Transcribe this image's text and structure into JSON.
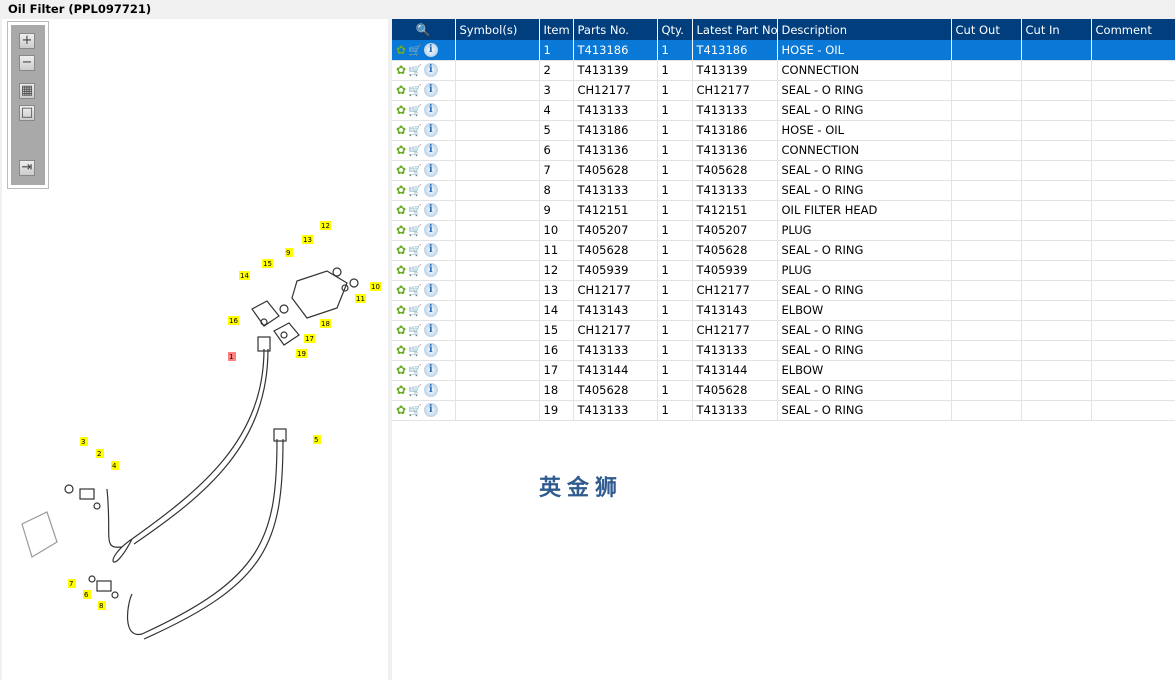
{
  "title": "Oil Filter (PPL097721)",
  "toolbar": {
    "zoom_in": "+",
    "zoom_out": "−",
    "fit": "▦",
    "actual": "□",
    "export": "⇥"
  },
  "columns": [
    "",
    "Symbol(s)",
    "Item",
    "Parts No.",
    "Qty.",
    "Latest Part No.",
    "Description",
    "Cut Out",
    "Cut In",
    "Comment"
  ],
  "rows": [
    [
      "1",
      "T413186",
      "1",
      "T413186",
      "HOSE - OIL"
    ],
    [
      "2",
      "T413139",
      "1",
      "T413139",
      "CONNECTION"
    ],
    [
      "3",
      "CH12177",
      "1",
      "CH12177",
      "SEAL - O RING"
    ],
    [
      "4",
      "T413133",
      "1",
      "T413133",
      "SEAL - O RING"
    ],
    [
      "5",
      "T413186",
      "1",
      "T413186",
      "HOSE - OIL"
    ],
    [
      "6",
      "T413136",
      "1",
      "T413136",
      "CONNECTION"
    ],
    [
      "7",
      "T405628",
      "1",
      "T405628",
      "SEAL - O RING"
    ],
    [
      "8",
      "T413133",
      "1",
      "T413133",
      "SEAL - O RING"
    ],
    [
      "9",
      "T412151",
      "1",
      "T412151",
      "OIL FILTER HEAD"
    ],
    [
      "10",
      "T405207",
      "1",
      "T405207",
      "PLUG"
    ],
    [
      "11",
      "T405628",
      "1",
      "T405628",
      "SEAL - O RING"
    ],
    [
      "12",
      "T405939",
      "1",
      "T405939",
      "PLUG"
    ],
    [
      "13",
      "CH12177",
      "1",
      "CH12177",
      "SEAL - O RING"
    ],
    [
      "14",
      "T413143",
      "1",
      "T413143",
      "ELBOW"
    ],
    [
      "15",
      "CH12177",
      "1",
      "CH12177",
      "SEAL - O RING"
    ],
    [
      "16",
      "T413133",
      "1",
      "T413133",
      "SEAL - O RING"
    ],
    [
      "17",
      "T413144",
      "1",
      "T413144",
      "ELBOW"
    ],
    [
      "18",
      "T405628",
      "1",
      "T405628",
      "SEAL - O RING"
    ],
    [
      "19",
      "T413133",
      "1",
      "T413133",
      "SEAL - O RING"
    ]
  ],
  "selected_row": 0,
  "diagram_callouts": [
    "12",
    "13",
    "9",
    "15",
    "14",
    "11",
    "10",
    "16",
    "18",
    "17",
    "19",
    "1",
    "3",
    "2",
    "4",
    "5",
    "7",
    "6",
    "8"
  ],
  "watermark": "英金狮",
  "colors": {
    "header": "#003e7e",
    "selected": "#0a78d7",
    "callout": "#ffff00",
    "callout_selected": "#ff8080"
  }
}
